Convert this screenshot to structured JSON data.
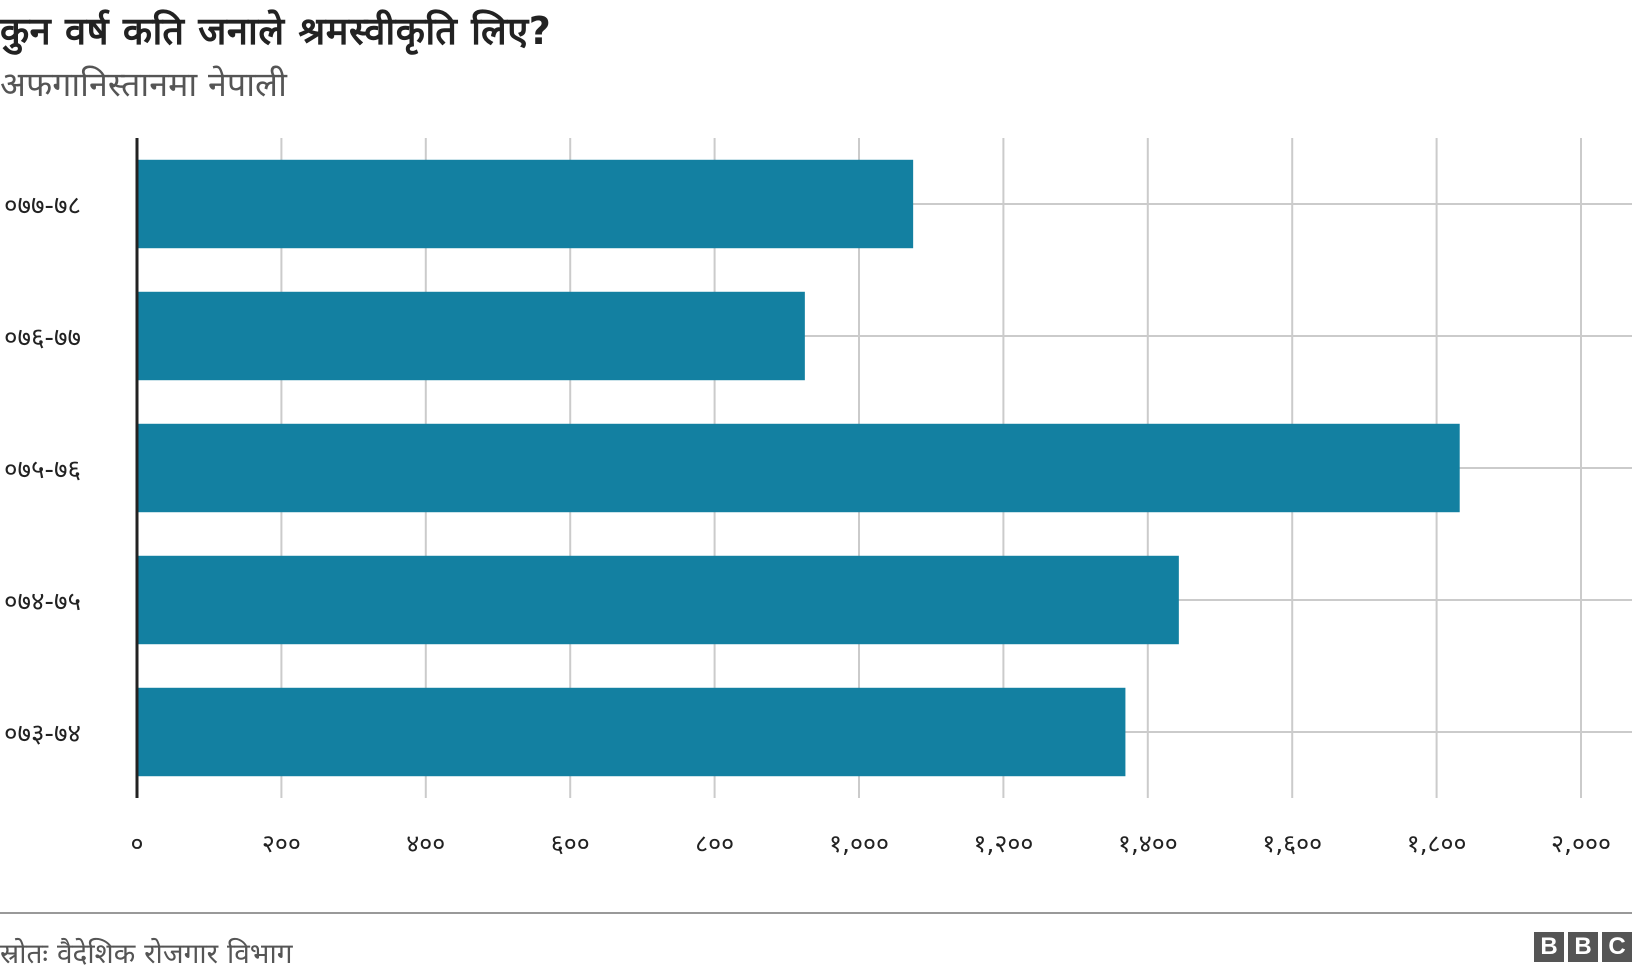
{
  "chart_data": {
    "type": "bar",
    "orientation": "horizontal",
    "title": "कुन वर्ष कति जनाले श्रमस्वीकृति लिए?",
    "subtitle": "अफगानिस्तानमा नेपाली",
    "categories": [
      "०७७-७८",
      "०७६-७७",
      "०७५-७६",
      "०७४-७५",
      "०७३-७४"
    ],
    "values": [
      1075,
      925,
      1832,
      1443,
      1369
    ],
    "xlim": [
      0,
      2000
    ],
    "xticks": [
      0,
      200,
      400,
      600,
      800,
      1000,
      1200,
      1400,
      1600,
      1800,
      2000
    ],
    "xtick_labels": [
      "०",
      "२००",
      "४००",
      "६००",
      "८००",
      "१,०००",
      "१,२००",
      "१,४००",
      "१,६००",
      "१,८००",
      "२,०००"
    ],
    "grid": true,
    "legend": "none",
    "bar_color": "#1380A1",
    "grid_color": "#cbcbcb",
    "source": "स्रोतः वैदेशिक रोजगार विभाग",
    "logo": [
      "B",
      "B",
      "C"
    ]
  }
}
